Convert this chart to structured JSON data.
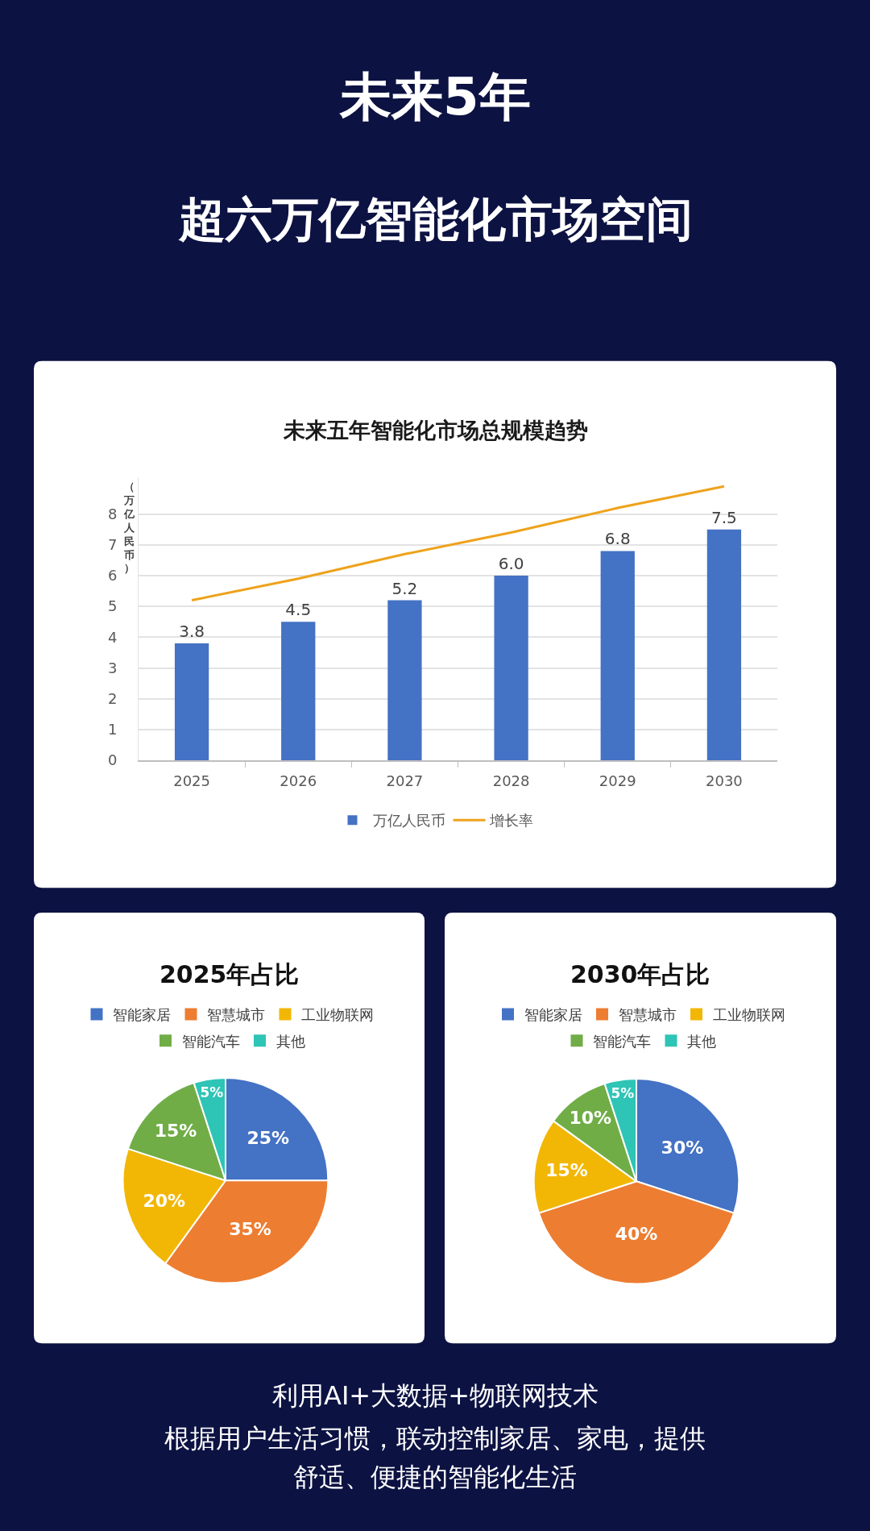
{
  "chart_data": [
    {
      "type": "other",
      "title": "未来5年",
      "subtitle": "超六万亿智能化市场空间"
    },
    {
      "type": "bar",
      "title": "未来五年智能化市场总规模趋势",
      "ylabel": "（万亿人民币）",
      "categories": [
        "2025",
        "2026",
        "2027",
        "2028",
        "2029",
        "2030"
      ],
      "series": [
        {
          "name": "万亿人民币",
          "type": "bar",
          "color": "#4472c4",
          "values": [
            3.8,
            4.5,
            5.2,
            6.0,
            6.8,
            7.5
          ],
          "value_labels": [
            "3.8",
            "4.5",
            "5.2",
            "6.0",
            "6.8",
            "7.5"
          ]
        },
        {
          "name": "增长率",
          "type": "line",
          "color": "#eea21b",
          "values": [
            5.2,
            5.9,
            6.7,
            7.4,
            8.2,
            8.9
          ]
        }
      ],
      "ylim": [
        0,
        9.2
      ],
      "yticks": [
        0,
        1,
        2,
        3,
        4,
        5,
        6,
        7,
        8
      ],
      "grid": "y",
      "legend": "bottom"
    },
    {
      "type": "pie",
      "title": "2025年占比",
      "categories": [
        "智能家居",
        "智慧城市",
        "工业物联网",
        "智能汽车",
        "其他"
      ],
      "values": [
        25,
        35,
        20,
        15,
        5
      ],
      "colors": [
        "#4472c4",
        "#ed7d31",
        "#f2b705",
        "#70ad47",
        "#2ec4b6"
      ],
      "value_labels": [
        "25%",
        "35%",
        "20%",
        "15%",
        "5%"
      ],
      "legend": "top"
    },
    {
      "type": "pie",
      "title": "2030年占比",
      "categories": [
        "智能家居",
        "智慧城市",
        "工业物联网",
        "智能汽车",
        "其他"
      ],
      "values": [
        30,
        40,
        15,
        10,
        5
      ],
      "colors": [
        "#4472c4",
        "#ed7d31",
        "#f2b705",
        "#70ad47",
        "#2ec4b6"
      ],
      "value_labels": [
        "30%",
        "40%",
        "15%",
        "10%",
        "5%"
      ],
      "legend": "top"
    },
    {
      "type": "other",
      "annotations": [
        "利用AI+大数据+物联网技术",
        "根据用户生活习惯，联动控制家居、家电，提供",
        "舒适、便捷的智能化生活"
      ]
    }
  ]
}
